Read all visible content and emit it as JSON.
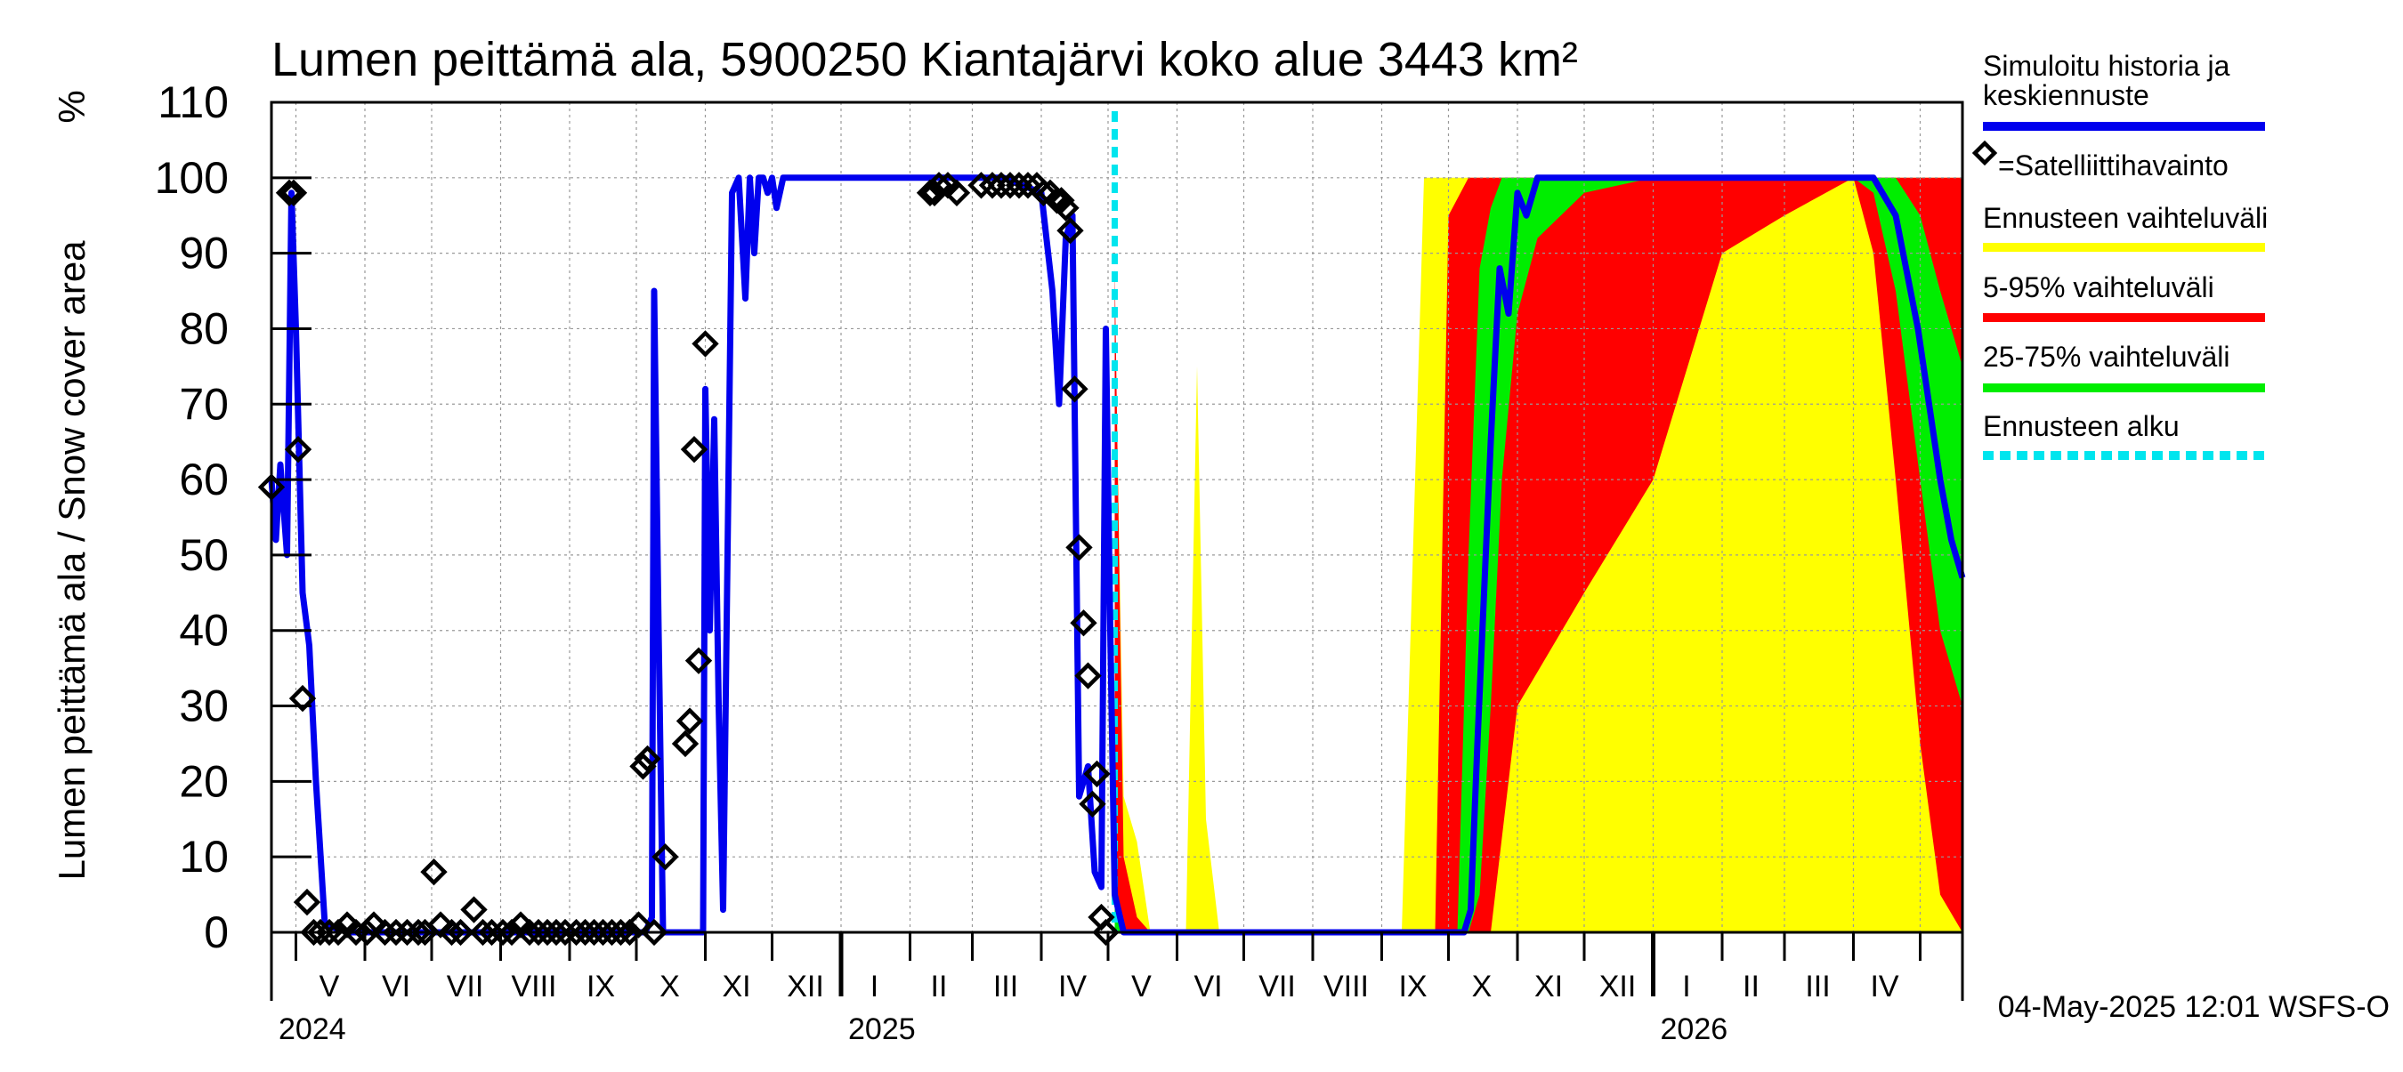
{
  "chart_data": {
    "type": "area",
    "title": "Lumen peittämä ala, 5900250 Kiantajärvi koko alue 3443 km²",
    "ylabel": "Lumen peittämä ala / Snow cover area",
    "yunit": "%",
    "ylim": [
      0,
      110
    ],
    "yticks": [
      "0",
      "10",
      "20",
      "30",
      "40",
      "50",
      "60",
      "70",
      "80",
      "90",
      "100",
      "110"
    ],
    "xlim": [
      "2024-04-20",
      "2026-05-20"
    ],
    "grid": true,
    "month_labels": [
      {
        "label": "V",
        "date": "2024-05-16"
      },
      {
        "label": "VI",
        "date": "2024-06-15"
      },
      {
        "label": "VII",
        "date": "2024-07-16"
      },
      {
        "label": "VIII",
        "date": "2024-08-16"
      },
      {
        "label": "IX",
        "date": "2024-09-15"
      },
      {
        "label": "X",
        "date": "2024-10-16"
      },
      {
        "label": "XI",
        "date": "2024-11-15"
      },
      {
        "label": "XII",
        "date": "2024-12-16"
      },
      {
        "label": "I",
        "date": "2025-01-16"
      },
      {
        "label": "II",
        "date": "2025-02-14"
      },
      {
        "label": "III",
        "date": "2025-03-16"
      },
      {
        "label": "IV",
        "date": "2025-04-15"
      },
      {
        "label": "V",
        "date": "2025-05-16"
      },
      {
        "label": "VI",
        "date": "2025-06-15"
      },
      {
        "label": "VII",
        "date": "2025-07-16"
      },
      {
        "label": "VIII",
        "date": "2025-08-16"
      },
      {
        "label": "IX",
        "date": "2025-09-15"
      },
      {
        "label": "X",
        "date": "2025-10-16"
      },
      {
        "label": "XI",
        "date": "2025-11-15"
      },
      {
        "label": "XII",
        "date": "2025-12-16"
      },
      {
        "label": "I",
        "date": "2026-01-16"
      },
      {
        "label": "II",
        "date": "2026-02-14"
      },
      {
        "label": "III",
        "date": "2026-03-16"
      },
      {
        "label": "IV",
        "date": "2026-04-15"
      }
    ],
    "year_labels": [
      {
        "label": "2024",
        "date": "2024-04-20"
      },
      {
        "label": "2025",
        "date": "2025-01-01"
      },
      {
        "label": "2026",
        "date": "2026-01-01"
      }
    ],
    "forecast_start": "2025-05-04",
    "timestamp": "04-May-2025 12:01 WSFS-O",
    "legend": {
      "position": "right",
      "entries": [
        {
          "label": "Simuloitu historia ja keskiennuste",
          "color": "#0000ee",
          "style": "line"
        },
        {
          "label": "=Satelliittihavainto",
          "color": "#000000",
          "style": "diamond"
        },
        {
          "label": "Ennusteen vaihteluväli",
          "color": "#ffff00",
          "style": "band"
        },
        {
          "label": "5-95% vaihteluväli",
          "color": "#ff0000",
          "style": "band"
        },
        {
          "label": "25-75% vaihteluväli",
          "color": "#00ee00",
          "style": "band"
        },
        {
          "label": "Ennusteen alku",
          "color": "#00e5ee",
          "style": "dashed"
        }
      ]
    },
    "series": [
      {
        "name": "Simuloitu historia ja keskiennuste",
        "color": "#0000ee",
        "x": [
          "2024-04-20",
          "2024-04-22",
          "2024-04-24",
          "2024-04-27",
          "2024-04-29",
          "2024-05-01",
          "2024-05-04",
          "2024-05-07",
          "2024-05-10",
          "2024-05-14",
          "2024-05-25",
          "2024-06-15",
          "2024-07-15",
          "2024-08-15",
          "2024-09-15",
          "2024-10-05",
          "2024-10-08",
          "2024-10-09",
          "2024-10-11",
          "2024-10-13",
          "2024-10-16",
          "2024-10-31",
          "2024-11-01",
          "2024-11-03",
          "2024-11-05",
          "2024-11-07",
          "2024-11-09",
          "2024-11-13",
          "2024-11-16",
          "2024-11-19",
          "2024-11-21",
          "2024-11-23",
          "2024-11-25",
          "2024-11-27",
          "2024-11-29",
          "2024-12-01",
          "2024-12-03",
          "2024-12-06",
          "2024-12-10",
          "2024-12-15",
          "2024-12-20",
          "2025-01-01",
          "2025-01-05",
          "2025-01-10",
          "2025-02-01",
          "2025-02-15",
          "2025-03-01",
          "2025-03-15",
          "2025-04-01",
          "2025-04-06",
          "2025-04-09",
          "2025-04-12",
          "2025-04-15",
          "2025-04-18",
          "2025-04-22",
          "2025-04-25",
          "2025-04-28",
          "2025-04-30",
          "2025-05-02",
          "2025-05-04",
          "2025-05-08",
          "2025-05-12",
          "2025-05-20",
          "2025-06-01",
          "2025-07-01",
          "2025-08-01",
          "2025-09-01",
          "2025-10-01",
          "2025-10-05",
          "2025-10-08",
          "2025-10-11",
          "2025-10-14",
          "2025-10-17",
          "2025-10-20",
          "2025-10-24",
          "2025-10-28",
          "2025-11-01",
          "2025-11-05",
          "2025-11-10",
          "2025-12-01",
          "2026-01-01",
          "2026-02-01",
          "2026-03-01",
          "2026-04-01",
          "2026-04-10",
          "2026-04-20",
          "2026-04-30",
          "2026-05-10",
          "2026-05-15",
          "2026-05-20"
        ],
        "values": [
          60,
          52,
          62,
          50,
          98,
          80,
          45,
          38,
          20,
          1,
          0,
          0,
          0,
          0,
          0,
          0,
          2,
          85,
          40,
          0,
          0,
          0,
          72,
          40,
          68,
          30,
          3,
          98,
          100,
          84,
          100,
          90,
          100,
          100,
          98,
          100,
          96,
          100,
          100,
          100,
          100,
          100,
          100,
          100,
          100,
          100,
          100,
          100,
          98,
          85,
          70,
          92,
          95,
          18,
          22,
          8,
          6,
          80,
          40,
          5,
          0,
          0,
          0,
          0,
          0,
          0,
          0,
          0,
          0,
          0,
          3,
          25,
          45,
          65,
          88,
          82,
          98,
          95,
          100,
          100,
          100,
          100,
          100,
          100,
          100,
          95,
          80,
          60,
          52,
          47
        ]
      },
      {
        "name": "Ennusteen vaihteluväli",
        "color": "#ffff00",
        "x": [
          "2025-05-04",
          "2025-05-08",
          "2025-05-14",
          "2025-05-20",
          "2025-06-01",
          "2025-06-05",
          "2025-06-10",
          "2025-06-14",
          "2025-06-20",
          "2025-07-01",
          "2025-08-01",
          "2025-09-01",
          "2025-09-10",
          "2025-09-15",
          "2025-09-20",
          "2025-09-25",
          "2025-10-01",
          "2025-10-15",
          "2025-11-01",
          "2025-12-01",
          "2026-01-01",
          "2026-02-01",
          "2026-03-01",
          "2026-04-01",
          "2026-04-15",
          "2026-05-01",
          "2026-05-10",
          "2026-05-20"
        ],
        "low": [
          0,
          0,
          0,
          0,
          0,
          0,
          0,
          0,
          0,
          0,
          0,
          0,
          0,
          0,
          0,
          0,
          0,
          0,
          0,
          0,
          0,
          0,
          0,
          0,
          0,
          0,
          0,
          0
        ],
        "high": [
          85,
          18,
          12,
          0,
          0,
          0,
          75,
          15,
          0,
          0,
          0,
          0,
          0,
          50,
          100,
          100,
          100,
          100,
          100,
          100,
          100,
          100,
          100,
          100,
          100,
          100,
          100,
          100
        ]
      },
      {
        "name": "5-95% vaihteluväli",
        "color": "#ff0000",
        "x": [
          "2025-05-04",
          "2025-05-08",
          "2025-05-14",
          "2025-05-20",
          "2025-09-25",
          "2025-10-01",
          "2025-10-10",
          "2025-10-20",
          "2025-11-01",
          "2025-12-01",
          "2026-01-01",
          "2026-02-01",
          "2026-03-01",
          "2026-04-01",
          "2026-04-10",
          "2026-04-20",
          "2026-05-01",
          "2026-05-10",
          "2026-05-20"
        ],
        "low": [
          0,
          0,
          0,
          0,
          0,
          0,
          0,
          0,
          30,
          45,
          60,
          90,
          95,
          100,
          90,
          60,
          25,
          5,
          0
        ],
        "high": [
          88,
          10,
          2,
          0,
          0,
          95,
          100,
          100,
          100,
          100,
          100,
          100,
          100,
          100,
          100,
          100,
          100,
          100,
          100
        ]
      },
      {
        "name": "25-75% vaihteluväli",
        "color": "#00ee00",
        "x": [
          "2025-05-04",
          "2025-05-08",
          "2025-05-14",
          "2025-10-01",
          "2025-10-05",
          "2025-10-10",
          "2025-10-15",
          "2025-10-20",
          "2025-10-25",
          "2025-11-01",
          "2025-11-10",
          "2025-12-01",
          "2026-01-01",
          "2026-02-01",
          "2026-03-01",
          "2026-04-01",
          "2026-04-10",
          "2026-04-20",
          "2026-05-01",
          "2026-05-10",
          "2026-05-20"
        ],
        "low": [
          0,
          0,
          0,
          0,
          0,
          0,
          5,
          30,
          60,
          82,
          92,
          98,
          100,
          100,
          100,
          100,
          98,
          85,
          60,
          40,
          30
        ],
        "high": [
          5,
          0,
          0,
          0,
          0,
          50,
          88,
          96,
          100,
          100,
          100,
          100,
          100,
          100,
          100,
          100,
          100,
          100,
          95,
          85,
          75
        ]
      }
    ],
    "observations": {
      "name": "=Satelliittihavainto",
      "marker": "diamond",
      "color": "#000000",
      "x": [
        "2024-04-20",
        "2024-04-28",
        "2024-04-30",
        "2024-05-02",
        "2024-05-04",
        "2024-05-06",
        "2024-05-09",
        "2024-05-12",
        "2024-05-16",
        "2024-05-20",
        "2024-05-24",
        "2024-05-28",
        "2024-06-02",
        "2024-06-05",
        "2024-06-10",
        "2024-06-15",
        "2024-06-20",
        "2024-06-25",
        "2024-06-28",
        "2024-07-02",
        "2024-07-05",
        "2024-07-10",
        "2024-07-14",
        "2024-07-20",
        "2024-07-24",
        "2024-07-28",
        "2024-08-02",
        "2024-08-06",
        "2024-08-10",
        "2024-08-14",
        "2024-08-18",
        "2024-08-22",
        "2024-08-26",
        "2024-08-30",
        "2024-09-04",
        "2024-09-08",
        "2024-09-12",
        "2024-09-16",
        "2024-09-20",
        "2024-09-24",
        "2024-09-28",
        "2024-10-02",
        "2024-10-04",
        "2024-10-06",
        "2024-10-09",
        "2024-10-14",
        "2024-10-23",
        "2024-10-25",
        "2024-10-27",
        "2024-10-29",
        "2024-11-01",
        "2025-02-10",
        "2025-02-12",
        "2025-02-14",
        "2025-02-18",
        "2025-02-22",
        "2025-03-05",
        "2025-03-10",
        "2025-03-14",
        "2025-03-18",
        "2025-03-22",
        "2025-03-26",
        "2025-03-30",
        "2025-04-02",
        "2025-04-05",
        "2025-04-08",
        "2025-04-10",
        "2025-04-12",
        "2025-04-14",
        "2025-04-16",
        "2025-04-18",
        "2025-04-20",
        "2025-04-22",
        "2025-04-24",
        "2025-04-26",
        "2025-04-28",
        "2025-04-30"
      ],
      "values": [
        59,
        98,
        98,
        64,
        31,
        4,
        0,
        0,
        0,
        0,
        1,
        0,
        0,
        1,
        0,
        0,
        0,
        0,
        0,
        8,
        1,
        0,
        0,
        3,
        0,
        0,
        0,
        0,
        1,
        0,
        0,
        0,
        0,
        0,
        0,
        0,
        0,
        0,
        0,
        0,
        0,
        1,
        22,
        23,
        0,
        10,
        25,
        28,
        64,
        36,
        78,
        98,
        98,
        99,
        99,
        98,
        99,
        99,
        99,
        99,
        99,
        99,
        99,
        98,
        98,
        97,
        97,
        96,
        93,
        72,
        51,
        41,
        34,
        17,
        21,
        2,
        0
      ]
    }
  }
}
